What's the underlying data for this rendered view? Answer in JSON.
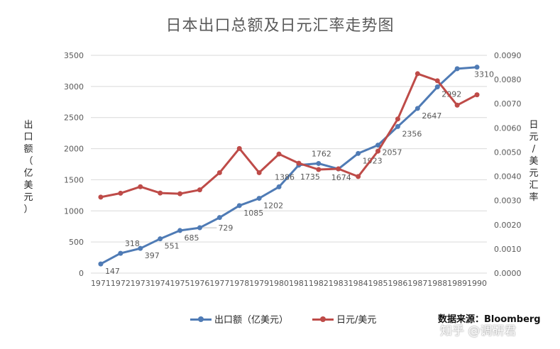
{
  "title": "日本出口总额及日元汇率走势图",
  "source": "数据来源：Bloomberg",
  "watermark": "知乎 @调研君",
  "colors": {
    "export": "#4F7BB5",
    "fx": "#BE4B48",
    "grid": "#D9D9D9",
    "axis_text": "#595959"
  },
  "chart_data": {
    "type": "line",
    "title": "日本出口总额及日元汇率走势图",
    "categories": [
      "1971",
      "1972",
      "1973",
      "1974",
      "1975",
      "1976",
      "1977",
      "1978",
      "1979",
      "1980",
      "1981",
      "1982",
      "1983",
      "1984",
      "1985",
      "1986",
      "1987",
      "1988",
      "1989",
      "1990"
    ],
    "ylabel": "出口额（亿美元）",
    "y2label": "日元/美元汇率",
    "ylim": [
      0,
      3500
    ],
    "y2lim": [
      0,
      0.009
    ],
    "yticks": [
      "0",
      "500",
      "1000",
      "1500",
      "2000",
      "2500",
      "3000",
      "3500"
    ],
    "y2ticks": [
      "0.0000",
      "0.0010",
      "0.0020",
      "0.0030",
      "0.0040",
      "0.0050",
      "0.0060",
      "0.0070",
      "0.0080",
      "0.0090"
    ],
    "grid": true,
    "legend_position": "bottom",
    "series": [
      {
        "name": "出口额（亿美元）",
        "axis": "left",
        "values": [
          147,
          318,
          397,
          551,
          685,
          729,
          893,
          1085,
          1202,
          1386,
          1735,
          1762,
          1674,
          1923,
          2057,
          2356,
          2647,
          2992,
          3285,
          3310
        ],
        "labels": [
          "147",
          "318",
          "397",
          "551",
          "685",
          "729",
          "",
          "1085",
          "1202",
          "1386",
          "1735",
          "1762",
          "1674",
          "1923",
          "2057",
          "2356",
          "2647",
          "2992",
          "",
          "3310"
        ]
      },
      {
        "name": "日元/美元",
        "axis": "right",
        "values": [
          0.00314,
          0.0033,
          0.00357,
          0.00331,
          0.00328,
          0.00344,
          0.00415,
          0.00515,
          0.00415,
          0.00492,
          0.00454,
          0.00428,
          0.00431,
          0.00399,
          0.00504,
          0.00637,
          0.00824,
          0.00795,
          0.00694,
          0.00737
        ]
      }
    ]
  }
}
